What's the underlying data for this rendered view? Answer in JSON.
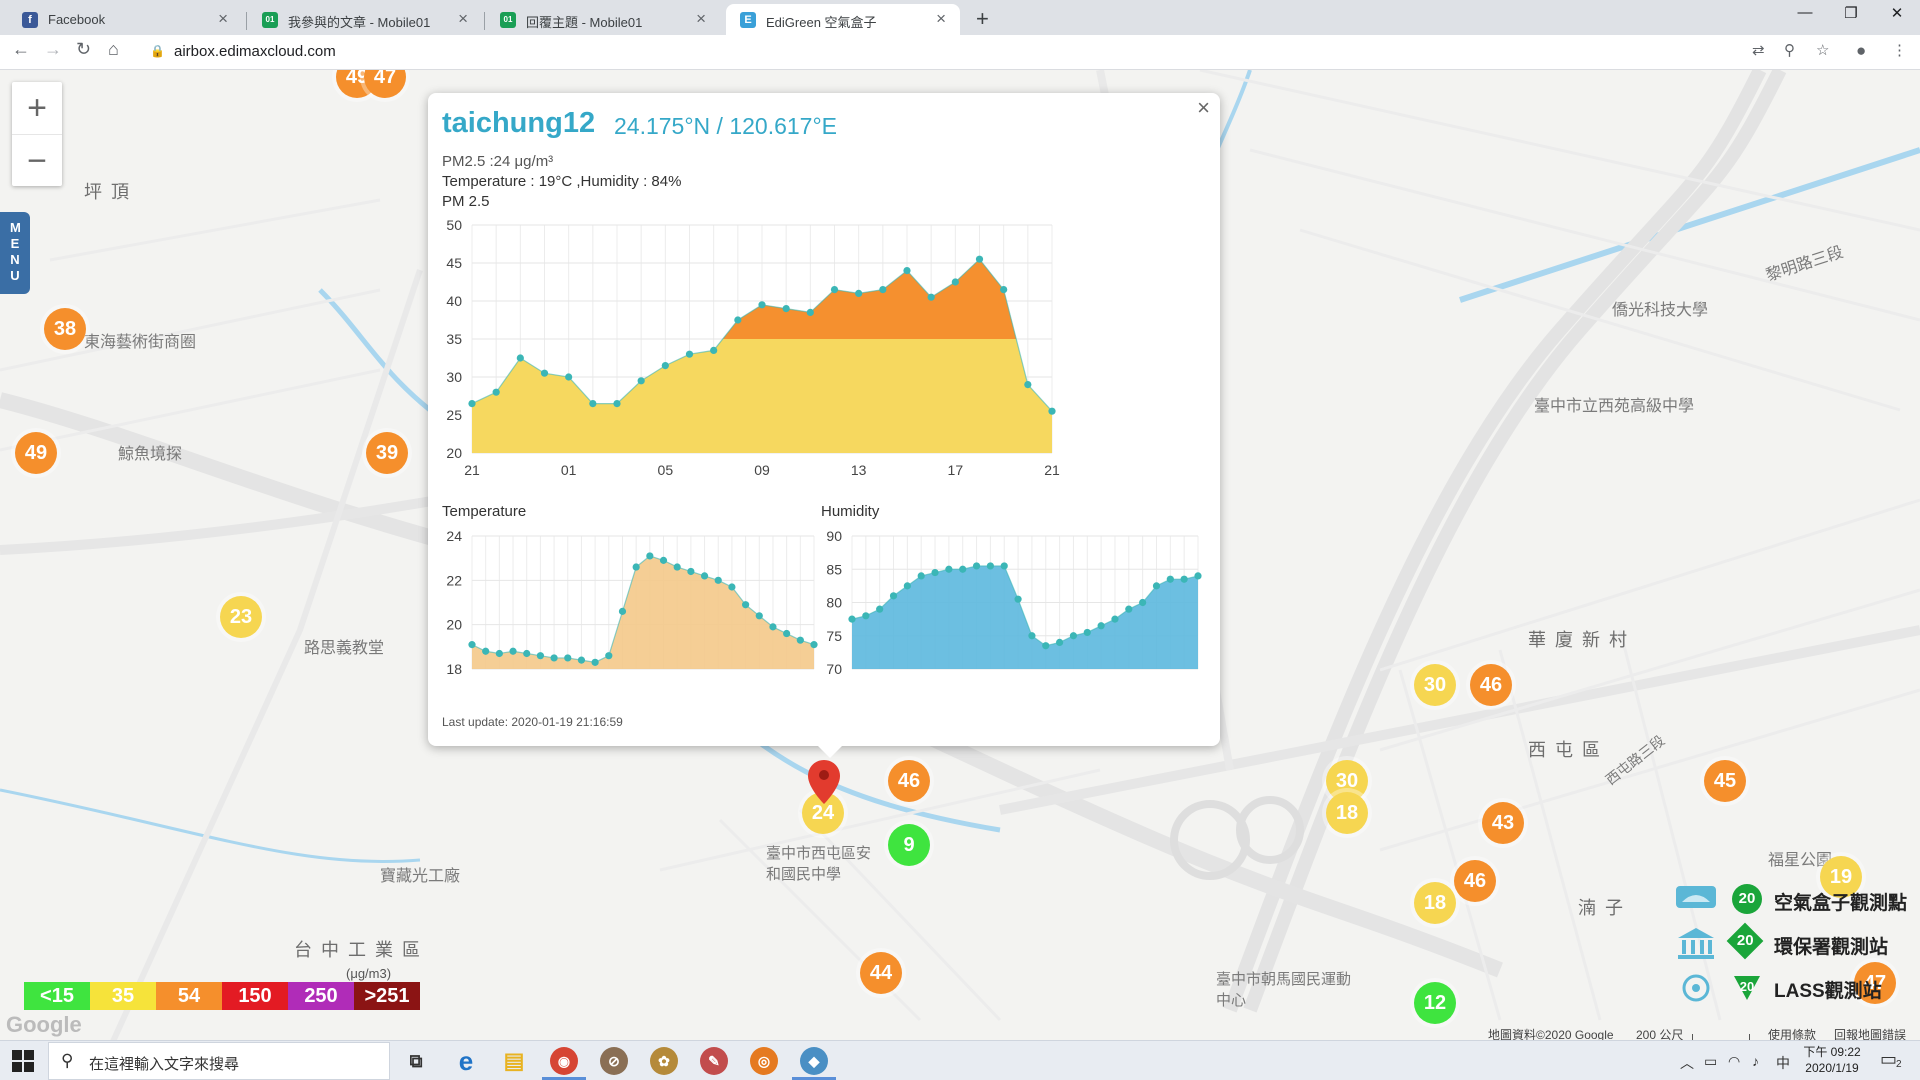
{
  "browser": {
    "tabs": [
      {
        "label": "Facebook",
        "icon": "facebook-icon",
        "active": false,
        "color": "#3b5998",
        "glyph": "f"
      },
      {
        "label": "我參與的文章 - Mobile01",
        "icon": "mobile01-icon",
        "active": false,
        "color": "#1a9e55",
        "glyph": "01"
      },
      {
        "label": "回覆主題 - Mobile01",
        "icon": "mobile01-icon",
        "active": false,
        "color": "#1a9e55",
        "glyph": "01"
      },
      {
        "label": "EdiGreen 空氣盒子",
        "icon": "edigreen-icon",
        "active": true,
        "color": "#3aa0d8",
        "glyph": "E"
      }
    ],
    "url": "airbox.edimaxcloud.com",
    "new_tab_label": "+",
    "min_label": "—",
    "max_label": "❐",
    "close_label": "✕"
  },
  "map": {
    "zoom_in_label": "+",
    "zoom_out_label": "−",
    "menu_label": "MENU",
    "place_labels": [
      {
        "text": "坪 頂"
      },
      {
        "text": "東海藝術街商圈"
      },
      {
        "text": "鯨魚境探"
      },
      {
        "text": "路思義教堂"
      },
      {
        "text": "寶藏光工廠"
      },
      {
        "text": "台 中 工 業 區"
      },
      {
        "text": "華 廈 新 村"
      },
      {
        "text": "西 屯 區"
      },
      {
        "text": "臺中市立西苑高級中學"
      },
      {
        "text": "僑光科技大學"
      },
      {
        "text": "臺中市西屯區安和國民中學"
      },
      {
        "text": "湳 子"
      },
      {
        "text": "臺中市朝馬國民運動中心"
      },
      {
        "text": "福星公園"
      },
      {
        "text": "黎明路三段"
      },
      {
        "text": "西屯路三段"
      }
    ],
    "markers": [
      {
        "value": "49",
        "color": "orange"
      },
      {
        "value": "47",
        "color": "orange"
      },
      {
        "value": "38",
        "color": "orange"
      },
      {
        "value": "49",
        "color": "orange"
      },
      {
        "value": "39",
        "color": "orange"
      },
      {
        "value": "23",
        "color": "yellow"
      },
      {
        "value": "24",
        "color": "yellow"
      },
      {
        "value": "46",
        "color": "orange"
      },
      {
        "value": "9",
        "color": "green"
      },
      {
        "value": "44",
        "color": "orange"
      },
      {
        "value": "30",
        "color": "yellow"
      },
      {
        "value": "46",
        "color": "orange"
      },
      {
        "value": "30",
        "color": "yellow"
      },
      {
        "value": "18",
        "color": "yellow"
      },
      {
        "value": "43",
        "color": "orange"
      },
      {
        "value": "46",
        "color": "orange"
      },
      {
        "value": "18",
        "color": "yellow"
      },
      {
        "value": "12",
        "color": "green"
      },
      {
        "value": "45",
        "color": "orange"
      },
      {
        "value": "19",
        "color": "yellow"
      },
      {
        "value": "47",
        "color": "orange"
      }
    ],
    "pm_legend": {
      "unit": "(μg/m3)",
      "bins": [
        {
          "label": "<15",
          "color": "#3fe43f"
        },
        {
          "label": "35",
          "color": "#f6e33a"
        },
        {
          "label": "54",
          "color": "#f58f2c"
        },
        {
          "label": "150",
          "color": "#e31b23"
        },
        {
          "label": "250",
          "color": "#b02cb8"
        },
        {
          "label": ">251",
          "color": "#8b1414"
        }
      ]
    },
    "station_legend": [
      {
        "label": "空氣盒子觀測點",
        "icon": "airbox-icon",
        "badge": "20",
        "color": "#1aa53a"
      },
      {
        "label": "環保署觀測站",
        "icon": "government-building-icon",
        "badge": "20",
        "color": "#1aa53a"
      },
      {
        "label": "LASS觀測站",
        "icon": "lass-station-icon",
        "badge": "20",
        "color": "#1aa53a"
      }
    ],
    "google_logo": "Google",
    "attribution": "地圖資料©2020 Google",
    "scale_label": "200 公尺",
    "terms_label": "使用條款",
    "report_label": "回報地圖錯誤"
  },
  "popup": {
    "station": "taichung12",
    "coords": "24.175°N / 120.617°E",
    "pm25_text": "PM2.5 :24 μg/m³",
    "temp_humidity_text": "Temperature : 19°C ,Humidity : 84%",
    "close_label": "×",
    "last_update": "Last update: 2020-01-19 21:16:59"
  },
  "chart_data": [
    {
      "type": "area",
      "title": "PM 2.5",
      "xlabel": "",
      "ylabel": "",
      "ylim": [
        20,
        50
      ],
      "yticks": [
        20,
        25,
        30,
        35,
        40,
        45,
        50
      ],
      "xtick_labels": [
        "21",
        "01",
        "05",
        "09",
        "13",
        "17",
        "21"
      ],
      "threshold": 35,
      "colors": {
        "below": "#f6d85f",
        "above": "#f5902f",
        "point": "#3bb6b6"
      },
      "grid": true,
      "values": [
        26.5,
        28,
        32.5,
        30.5,
        30,
        26.5,
        26.5,
        29.5,
        31.5,
        33,
        33.5,
        37.5,
        39.5,
        39,
        38.5,
        41.5,
        41,
        41.5,
        44,
        40.5,
        42.5,
        45.5,
        41.5,
        29,
        25.5
      ]
    },
    {
      "type": "area",
      "title": "Temperature",
      "xlabel": "",
      "ylabel": "",
      "ylim": [
        18,
        24
      ],
      "yticks": [
        18,
        20,
        22,
        24
      ],
      "colors": {
        "fill": "#f4c98a",
        "point": "#3bb6b6"
      },
      "grid": true,
      "values": [
        19.1,
        18.8,
        18.7,
        18.8,
        18.7,
        18.6,
        18.5,
        18.5,
        18.4,
        18.3,
        18.6,
        20.6,
        22.6,
        23.1,
        22.9,
        22.6,
        22.4,
        22.2,
        22.0,
        21.7,
        20.9,
        20.4,
        19.9,
        19.6,
        19.3,
        19.1
      ]
    },
    {
      "type": "area",
      "title": "Humidity",
      "xlabel": "",
      "ylabel": "",
      "ylim": [
        70,
        90
      ],
      "yticks": [
        70,
        75,
        80,
        85,
        90
      ],
      "colors": {
        "fill": "#5cb8de",
        "point": "#3bb6b6"
      },
      "grid": true,
      "values": [
        77.5,
        78,
        79,
        81,
        82.5,
        84,
        84.5,
        85,
        85,
        85.5,
        85.5,
        85.5,
        80.5,
        75,
        73.5,
        74,
        75,
        75.5,
        76.5,
        77.5,
        79,
        80,
        82.5,
        83.5,
        83.5,
        84
      ]
    }
  ],
  "taskbar": {
    "search_placeholder": "在這裡輸入文字來搜尋",
    "apps": [
      {
        "name": "task-view-icon",
        "glyph": "⧉",
        "color": "#555"
      },
      {
        "name": "edge-icon",
        "glyph": "e",
        "color": "#1f73c7"
      },
      {
        "name": "file-explorer-icon",
        "glyph": "▤",
        "color": "#e8b322"
      },
      {
        "name": "chrome-icon",
        "glyph": "◉",
        "color": "#d64534"
      },
      {
        "name": "app-icon-1",
        "glyph": "⊘",
        "color": "#8a6f55"
      },
      {
        "name": "app-icon-2",
        "glyph": "✿",
        "color": "#b58a3a"
      },
      {
        "name": "app-icon-3",
        "glyph": "✎",
        "color": "#c24d4d"
      },
      {
        "name": "blender-icon",
        "glyph": "◎",
        "color": "#e57a21"
      },
      {
        "name": "app-icon-4",
        "glyph": "◆",
        "color": "#4a8fc4"
      }
    ],
    "ime_label": "中",
    "time": "下午 09:22",
    "date": "2020/1/19",
    "notification_count": "2"
  }
}
